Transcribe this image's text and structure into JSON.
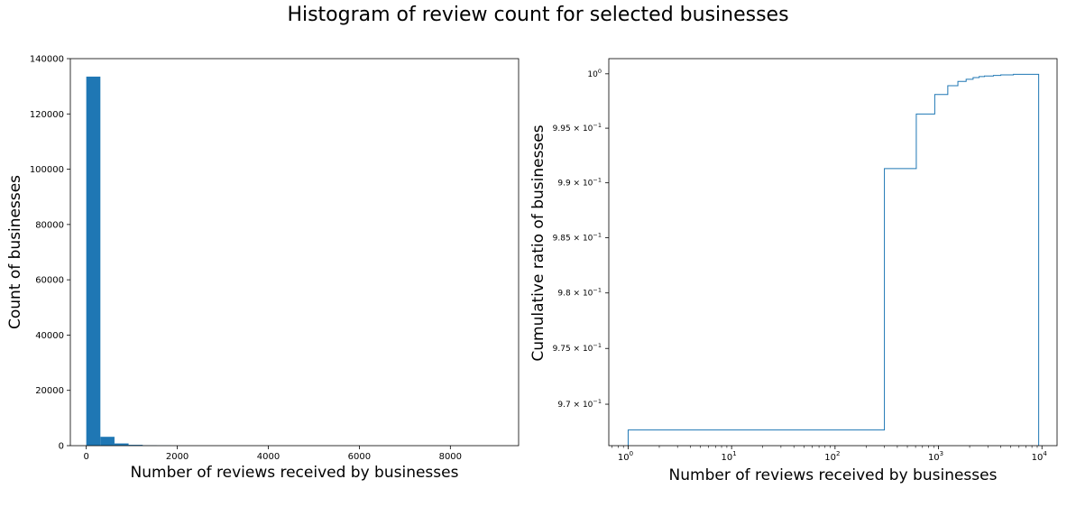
{
  "suptitle": "Histogram of review count for selected businesses",
  "chart_data": [
    {
      "type": "bar",
      "subtype": "histogram",
      "xlabel": "Number of reviews received by businesses",
      "ylabel": "Count of businesses",
      "xlim": [
        -350,
        9500
      ],
      "ylim": [
        0,
        140000
      ],
      "xticks": [
        0,
        2000,
        4000,
        6000,
        8000
      ],
      "yticks": [
        0,
        20000,
        40000,
        60000,
        80000,
        100000,
        120000,
        140000
      ],
      "bins": [
        {
          "x0": 0,
          "x1": 310,
          "count": 133500
        },
        {
          "x0": 310,
          "x1": 620,
          "count": 3200
        },
        {
          "x0": 620,
          "x1": 930,
          "count": 800
        },
        {
          "x0": 930,
          "x1": 1240,
          "count": 300
        },
        {
          "x0": 1240,
          "x1": 1550,
          "count": 100
        },
        {
          "x0": 1550,
          "x1": 1860,
          "count": 50
        }
      ],
      "color": "#1f77b4",
      "grid": false
    },
    {
      "type": "line",
      "subtype": "cumulative step histogram",
      "xlabel": "Number of reviews received by businesses",
      "ylabel": "Cumulative ratio of businesses",
      "xscale": "log",
      "yscale": "log",
      "xlim": [
        0.65,
        14000
      ],
      "ylim": [
        0.9663,
        1.0014
      ],
      "xticks": [
        {
          "value": 1,
          "base": "10",
          "exp": "0"
        },
        {
          "value": 10,
          "base": "10",
          "exp": "1"
        },
        {
          "value": 100,
          "base": "10",
          "exp": "2"
        },
        {
          "value": 1000,
          "base": "10",
          "exp": "3"
        },
        {
          "value": 10000,
          "base": "10",
          "exp": "4"
        }
      ],
      "yticks": [
        {
          "value": 0.97,
          "mant": "9.7 × 10",
          "exp": "−1"
        },
        {
          "value": 0.975,
          "mant": "9.75 × 10",
          "exp": "−1"
        },
        {
          "value": 0.98,
          "mant": "9.8 × 10",
          "exp": "−1"
        },
        {
          "value": 0.985,
          "mant": "9.85 × 10",
          "exp": "−1"
        },
        {
          "value": 0.99,
          "mant": "9.9 × 10",
          "exp": "−1"
        },
        {
          "value": 0.995,
          "mant": "9.95 × 10",
          "exp": "−1"
        },
        {
          "value": 1.0,
          "mant": "10",
          "exp": "0"
        }
      ],
      "steps": [
        {
          "x": 1,
          "y": 0.9677
        },
        {
          "x": 300,
          "y": 0.9913
        },
        {
          "x": 610,
          "y": 0.9963
        },
        {
          "x": 920,
          "y": 0.9981
        },
        {
          "x": 1230,
          "y": 0.9989
        },
        {
          "x": 1540,
          "y": 0.9993
        },
        {
          "x": 1850,
          "y": 0.9995
        },
        {
          "x": 2160,
          "y": 0.99965
        },
        {
          "x": 2470,
          "y": 0.99975
        },
        {
          "x": 2780,
          "y": 0.9998
        },
        {
          "x": 3400,
          "y": 0.99985
        },
        {
          "x": 4000,
          "y": 0.9999
        },
        {
          "x": 5300,
          "y": 0.99995
        },
        {
          "x": 9300,
          "y": 1.0
        }
      ],
      "x_end": 9300,
      "color": "#1f77b4",
      "grid": false
    }
  ]
}
